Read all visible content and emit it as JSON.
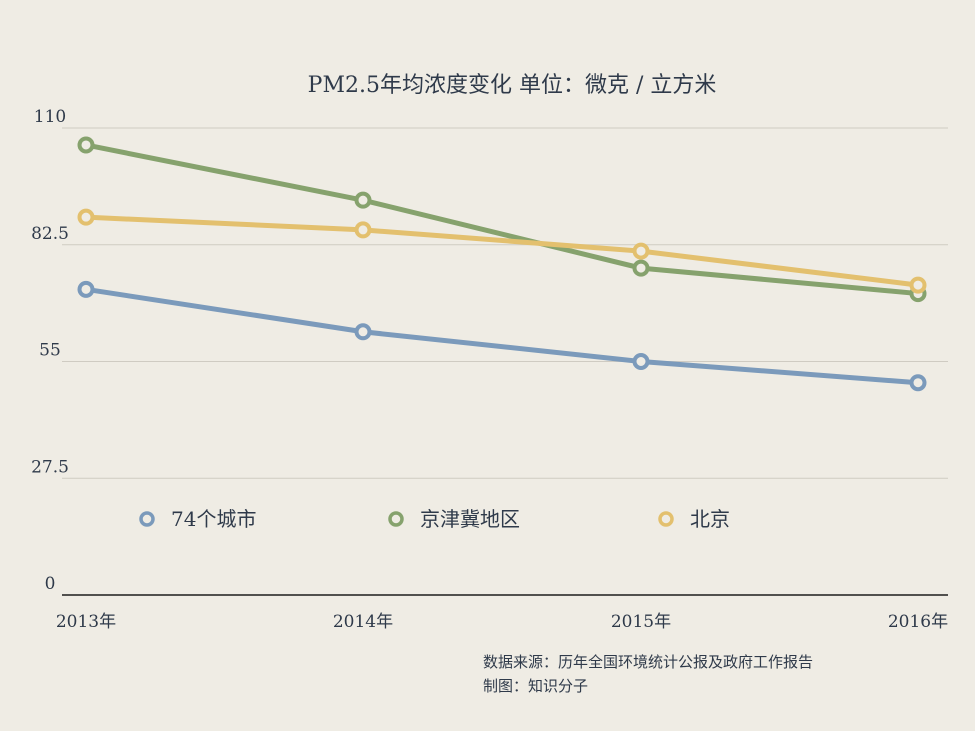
{
  "chart_data": {
    "type": "line",
    "title": "PM2.5年均浓度变化 单位：微克 / 立方米",
    "categories": [
      "2013年",
      "2014年",
      "2015年",
      "2016年"
    ],
    "ylim": [
      0,
      110
    ],
    "yticks": [
      0,
      27.5,
      55,
      82.5,
      110
    ],
    "ytick_labels": [
      "0",
      "27.5",
      "55",
      "82.5",
      "110"
    ],
    "grid": true,
    "legend_position": "middle-left",
    "series": [
      {
        "name": "74个城市",
        "color": "#7b9abb",
        "values": [
          72,
          62,
          55,
          50
        ]
      },
      {
        "name": "京津冀地区",
        "color": "#86a26d",
        "values": [
          106,
          93,
          77,
          71
        ]
      },
      {
        "name": "北京",
        "color": "#e3c06e",
        "values": [
          89,
          86,
          81,
          73
        ]
      }
    ]
  },
  "footer": {
    "source": "数据来源：历年全国环境统计公报及政府工作报告",
    "credit": "制图：知识分子"
  }
}
